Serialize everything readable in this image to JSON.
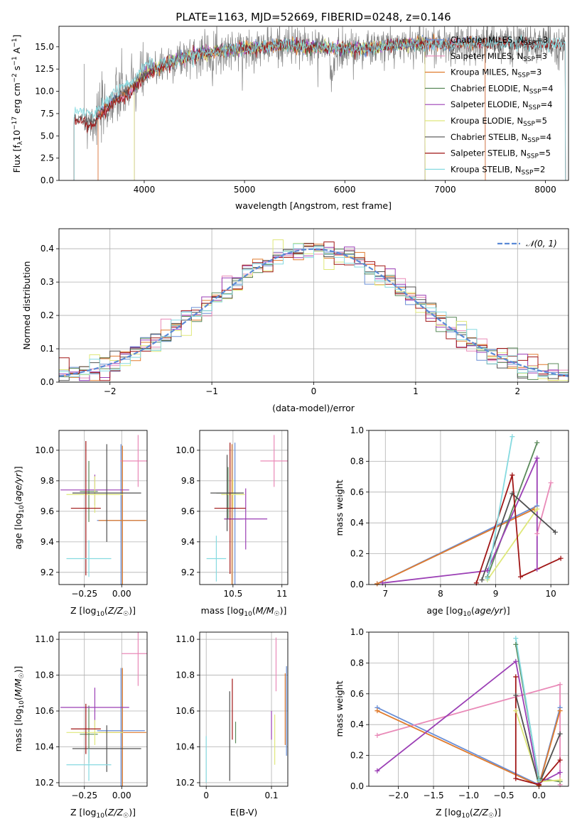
{
  "figure": {
    "title": "PLATE=1163, MJD=52669, FIBERID=0248, z=0.146"
  },
  "colors": {
    "Chabrier MILES": "#6a8fd6",
    "Salpeter MILES": "#e98ab8",
    "Kroupa MILES": "#e07b2d",
    "Chabrier ELODIE": "#5b8a5b",
    "Salpeter ELODIE": "#9b3fb5",
    "Kroupa ELODIE": "#dfe87a",
    "Chabrier STELIB": "#505050",
    "Salpeter STELIB": "#a01616",
    "Kroupa STELIB": "#86dae0",
    "gaussian": "#5b8ad6",
    "grid": "#b0b0b0"
  },
  "chart_data": [
    {
      "id": "spectrum",
      "type": "line",
      "title": "PLATE=1163, MJD=52669, FIBERID=0248, z=0.146",
      "xlabel": "wavelength [Angstrom, rest frame]",
      "ylabel": "Flux [f_λ10^-17 erg cm^-2 s^-1 A^-1]",
      "xlim": [
        3150,
        8230
      ],
      "ylim": [
        0,
        17.3
      ],
      "xticks": [
        4000,
        5000,
        6000,
        7000,
        8000
      ],
      "yticks": [
        0.0,
        2.5,
        5.0,
        7.5,
        10.0,
        12.5,
        15.0
      ],
      "grid": false,
      "legend_position": "top-right",
      "legend": [
        "Chabrier MILES, N_SSP=3",
        "Salpeter MILES, N_SSP=3",
        "Kroupa MILES, N_SSP=3",
        "Chabrier ELODIE, N_SSP=4",
        "Salpeter ELODIE, N_SSP=4",
        "Kroupa ELODIE, N_SSP=5",
        "Chabrier STELIB, N_SSP=4",
        "Salpeter STELIB, N_SSP=5",
        "Kroupa STELIB, N_SSP=2"
      ],
      "legend_colors": [
        "#6a8fd6",
        "#e98ab8",
        "#e07b2d",
        "#5b8a5b",
        "#9b3fb5",
        "#dfe87a",
        "#505050",
        "#a01616",
        "#86dae0"
      ],
      "data_trend": {
        "wavelength": [
          3300,
          3500,
          3700,
          3900,
          4000,
          4200,
          4400,
          4600,
          4800,
          5000,
          5200,
          5400,
          5600,
          5800,
          6000,
          6200,
          6400,
          6600,
          6800,
          7000,
          7200,
          7400,
          7600,
          7800,
          8000
        ],
        "flux": [
          7.0,
          6.7,
          9.0,
          10.5,
          12.0,
          13.0,
          13.8,
          14.3,
          14.6,
          14.8,
          15.0,
          15.2,
          15.0,
          14.9,
          14.8,
          14.8,
          15.0,
          15.3,
          15.4,
          15.2,
          15.4,
          15.5,
          15.4,
          15.3,
          15.3
        ]
      }
    },
    {
      "id": "residuals",
      "type": "step-histogram",
      "xlabel": "(data-model)/error",
      "ylabel": "Normed distribution",
      "xlim": [
        -2.5,
        2.5
      ],
      "ylim": [
        0,
        0.46
      ],
      "xticks": [
        -2,
        -1,
        0,
        1,
        2
      ],
      "xtick_labels": [
        "−2",
        "−1",
        "0",
        "1",
        "2"
      ],
      "yticks": [
        0.0,
        0.1,
        0.2,
        0.3,
        0.4
      ],
      "grid": true,
      "legend_position": "top-right",
      "legend": [
        "𝒩(0, 1)"
      ],
      "bin_width": 0.1
    },
    {
      "id": "age-Z",
      "type": "errorbar",
      "xlabel": "Z [log10(Z/Z☉)]",
      "ylabel": "age [log10(age/yr)]",
      "xlim": [
        -0.42,
        0.17
      ],
      "ylim": [
        9.12,
        10.13
      ],
      "xticks": [
        -0.25,
        0.0
      ],
      "xtick_labels": [
        "−0.25",
        "0.00"
      ],
      "yticks": [
        9.2,
        9.4,
        9.6,
        9.8,
        10.0
      ],
      "grid": true,
      "points": [
        {
          "model": "Chabrier MILES",
          "x": -0.005,
          "y": 9.54,
          "xerr": 0.16,
          "yerr": 0.5
        },
        {
          "model": "Salpeter MILES",
          "x": 0.11,
          "y": 9.93,
          "xerr": 0.12,
          "yerr": 0.17
        },
        {
          "model": "Kroupa MILES",
          "x": 0.005,
          "y": 9.54,
          "xerr": 0.16,
          "yerr": 0.49
        },
        {
          "model": "Chabrier ELODIE",
          "x": -0.22,
          "y": 9.73,
          "xerr": 0.06,
          "yerr": 0.2
        },
        {
          "model": "Salpeter ELODIE",
          "x": -0.18,
          "y": 9.74,
          "xerr": 0.23,
          "yerr": 0.1
        },
        {
          "model": "Kroupa ELODIE",
          "x": -0.18,
          "y": 9.71,
          "xerr": 0.19,
          "yerr": 0.12
        },
        {
          "model": "Chabrier STELIB",
          "x": -0.1,
          "y": 9.72,
          "xerr": 0.23,
          "yerr": 0.32
        },
        {
          "model": "Salpeter STELIB",
          "x": -0.24,
          "y": 9.62,
          "xerr": 0.1,
          "yerr": 0.44
        },
        {
          "model": "Kroupa STELIB",
          "x": -0.22,
          "y": 9.29,
          "xerr": 0.15,
          "yerr": 0.12
        }
      ]
    },
    {
      "id": "age-mass",
      "type": "errorbar",
      "xlabel": "mass [log10(M/M☉)]",
      "ylabel": "",
      "xlim": [
        10.16,
        11.06
      ],
      "ylim": [
        9.12,
        10.13
      ],
      "xticks": [
        10.5,
        11.0
      ],
      "yticks": [
        9.2,
        9.4,
        9.6,
        9.8,
        10.0
      ],
      "grid": true,
      "points": [
        {
          "model": "Chabrier MILES",
          "x": 10.52,
          "y": 9.55,
          "xerr": 0.08,
          "yerr": 0.5
        },
        {
          "model": "Salpeter MILES",
          "x": 10.92,
          "y": 9.93,
          "xerr": 0.14,
          "yerr": 0.17
        },
        {
          "model": "Kroupa MILES",
          "x": 10.49,
          "y": 9.55,
          "xerr": 0.08,
          "yerr": 0.49
        },
        {
          "model": "Chabrier ELODIE",
          "x": 10.45,
          "y": 9.72,
          "xerr": 0.12,
          "yerr": 0.17
        },
        {
          "model": "Salpeter ELODIE",
          "x": 10.63,
          "y": 9.55,
          "xerr": 0.22,
          "yerr": 0.2
        },
        {
          "model": "Kroupa ELODIE",
          "x": 10.5,
          "y": 9.71,
          "xerr": 0.12,
          "yerr": 0.1
        },
        {
          "model": "Chabrier STELIB",
          "x": 10.44,
          "y": 9.72,
          "xerr": 0.17,
          "yerr": 0.25
        },
        {
          "model": "Salpeter STELIB",
          "x": 10.47,
          "y": 9.62,
          "xerr": 0.16,
          "yerr": 0.43
        },
        {
          "model": "Kroupa STELIB",
          "x": 10.33,
          "y": 9.29,
          "xerr": 0.1,
          "yerr": 0.15
        }
      ]
    },
    {
      "id": "mw-age",
      "type": "line",
      "xlabel": "age [log10(age/yr)]",
      "ylabel": "mass weight",
      "xlim": [
        6.7,
        10.32
      ],
      "ylim": [
        0.0,
        1.0
      ],
      "xticks": [
        7,
        8,
        9,
        10
      ],
      "yticks": [
        0.0,
        0.2,
        0.4,
        0.6,
        0.8,
        1.0
      ],
      "grid": true,
      "series": [
        {
          "model": "Chabrier MILES",
          "x": [
            6.85,
            9.75
          ],
          "y": [
            0.005,
            0.51
          ]
        },
        {
          "model": "Salpeter MILES",
          "x": [
            9.75,
            10.0
          ],
          "y": [
            0.33,
            0.66
          ]
        },
        {
          "model": "Kroupa MILES",
          "x": [
            6.85,
            9.7
          ],
          "y": [
            0.005,
            0.49
          ]
        },
        {
          "model": "Chabrier ELODIE",
          "x": [
            8.85,
            9.75
          ],
          "y": [
            0.05,
            0.92
          ]
        },
        {
          "model": "Salpeter ELODIE",
          "x": [
            6.95,
            8.85,
            9.75,
            9.75
          ],
          "y": [
            0.01,
            0.09,
            0.82,
            0.1
          ]
        },
        {
          "model": "Kroupa ELODIE",
          "x": [
            8.85,
            9.75
          ],
          "y": [
            0.03,
            0.49
          ]
        },
        {
          "model": "Chabrier STELIB",
          "x": [
            8.75,
            9.3,
            10.08
          ],
          "y": [
            0.03,
            0.59,
            0.34
          ]
        },
        {
          "model": "Salpeter STELIB",
          "x": [
            8.65,
            9.3,
            9.45,
            10.18
          ],
          "y": [
            0.01,
            0.71,
            0.05,
            0.17
          ]
        },
        {
          "model": "Kroupa STELIB",
          "x": [
            8.85,
            9.3
          ],
          "y": [
            0.04,
            0.96
          ]
        }
      ]
    },
    {
      "id": "mass-Z",
      "type": "errorbar",
      "xlabel": "Z [log10(Z/Z☉)]",
      "ylabel": "mass [log10(M/M☉)]",
      "xlim": [
        -0.42,
        0.17
      ],
      "ylim": [
        10.18,
        11.04
      ],
      "xticks": [
        -0.25,
        0.0
      ],
      "xtick_labels": [
        "−0.25",
        "0.00"
      ],
      "yticks": [
        10.2,
        10.4,
        10.6,
        10.8,
        11.0
      ],
      "grid": true,
      "points": [
        {
          "model": "Chabrier MILES",
          "x": -0.005,
          "y": 10.49,
          "xerr": 0.16,
          "yerr": 0.35
        },
        {
          "model": "Salpeter MILES",
          "x": 0.11,
          "y": 10.92,
          "xerr": 0.11,
          "yerr": 0.18
        },
        {
          "model": "Kroupa MILES",
          "x": 0.005,
          "y": 10.48,
          "xerr": 0.16,
          "yerr": 0.36
        },
        {
          "model": "Chabrier ELODIE",
          "x": -0.22,
          "y": 10.47,
          "xerr": 0.06,
          "yerr": 0.16
        },
        {
          "model": "Salpeter ELODIE",
          "x": -0.18,
          "y": 10.62,
          "xerr": 0.23,
          "yerr": 0.11
        },
        {
          "model": "Kroupa ELODIE",
          "x": -0.18,
          "y": 10.48,
          "xerr": 0.19,
          "yerr": 0.07
        },
        {
          "model": "Chabrier STELIB",
          "x": -0.1,
          "y": 10.39,
          "xerr": 0.23,
          "yerr": 0.13
        },
        {
          "model": "Salpeter STELIB",
          "x": -0.24,
          "y": 10.5,
          "xerr": 0.1,
          "yerr": 0.14
        },
        {
          "model": "Kroupa STELIB",
          "x": -0.22,
          "y": 10.3,
          "xerr": 0.15,
          "yerr": 0.09
        }
      ]
    },
    {
      "id": "mass-EBV",
      "type": "errorbar",
      "xlabel": "E(B-V)",
      "ylabel": "",
      "xlim": [
        -0.01,
        0.125
      ],
      "ylim": [
        10.18,
        11.04
      ],
      "xticks": [
        0.0,
        0.1
      ],
      "yticks": [
        10.2,
        10.4,
        10.6,
        10.8,
        11.0
      ],
      "grid": true,
      "points": [
        {
          "model": "Chabrier MILES",
          "x": 0.123,
          "y": 10.6,
          "xerr": 0,
          "yerr": 0.25
        },
        {
          "model": "Salpeter MILES",
          "x": 0.107,
          "y": 10.86,
          "xerr": 0,
          "yerr": 0.15
        },
        {
          "model": "Kroupa MILES",
          "x": 0.121,
          "y": 10.61,
          "xerr": 0,
          "yerr": 0.2
        },
        {
          "model": "Chabrier ELODIE",
          "x": 0.045,
          "y": 10.48,
          "xerr": 0,
          "yerr": 0.06
        },
        {
          "model": "Salpeter ELODIE",
          "x": 0.1,
          "y": 10.52,
          "xerr": 0,
          "yerr": 0.08
        },
        {
          "model": "Kroupa ELODIE",
          "x": 0.105,
          "y": 10.44,
          "xerr": 0,
          "yerr": 0.14
        },
        {
          "model": "Chabrier STELIB",
          "x": 0.036,
          "y": 10.46,
          "xerr": 0,
          "yerr": 0.25
        },
        {
          "model": "Salpeter STELIB",
          "x": 0.04,
          "y": 10.61,
          "xerr": 0,
          "yerr": 0.17
        },
        {
          "model": "Kroupa STELIB",
          "x": 0.0,
          "y": 10.33,
          "xerr": 0,
          "yerr": 0.13
        }
      ]
    },
    {
      "id": "mw-Z",
      "type": "line",
      "xlabel": "Z [log10(Z/Z☉)]",
      "ylabel": "mass weight",
      "xlim": [
        -2.42,
        0.42
      ],
      "ylim": [
        0.0,
        1.0
      ],
      "xticks": [
        -2.0,
        -1.5,
        -1.0,
        -0.5,
        0.0
      ],
      "xtick_labels": [
        "−2.0",
        "−1.5",
        "−1.0",
        "−0.5",
        "0.0"
      ],
      "yticks": [
        0.0,
        0.2,
        0.4,
        0.6,
        0.8,
        1.0
      ],
      "grid": true,
      "series": [
        {
          "model": "Chabrier MILES",
          "x": [
            -2.3,
            0.0,
            0.3
          ],
          "y": [
            0.51,
            0.01,
            0.51
          ]
        },
        {
          "model": "Salpeter MILES",
          "x": [
            -2.3,
            0.3,
            0.3
          ],
          "y": [
            0.33,
            0.66,
            0.01
          ]
        },
        {
          "model": "Kroupa MILES",
          "x": [
            -2.3,
            0.0,
            0.3
          ],
          "y": [
            0.49,
            0.005,
            0.49
          ]
        },
        {
          "model": "Chabrier ELODIE",
          "x": [
            -0.33,
            0.0,
            0.3
          ],
          "y": [
            0.92,
            0.05,
            0.03
          ]
        },
        {
          "model": "Salpeter ELODIE",
          "x": [
            -2.3,
            -0.33,
            0.0,
            0.3
          ],
          "y": [
            0.1,
            0.81,
            0.02,
            0.09
          ]
        },
        {
          "model": "Kroupa ELODIE",
          "x": [
            -0.33,
            0.0,
            0.3
          ],
          "y": [
            0.49,
            0.03,
            0.04
          ]
        },
        {
          "model": "Chabrier STELIB",
          "x": [
            -0.33,
            0.0,
            0.3
          ],
          "y": [
            0.59,
            0.01,
            0.34
          ]
        },
        {
          "model": "Salpeter STELIB",
          "x": [
            -0.33,
            -0.33,
            0.0,
            0.3
          ],
          "y": [
            0.71,
            0.05,
            0.01,
            0.17
          ]
        },
        {
          "model": "Kroupa STELIB",
          "x": [
            -0.33,
            0.0
          ],
          "y": [
            0.96,
            0.04
          ]
        }
      ]
    }
  ]
}
